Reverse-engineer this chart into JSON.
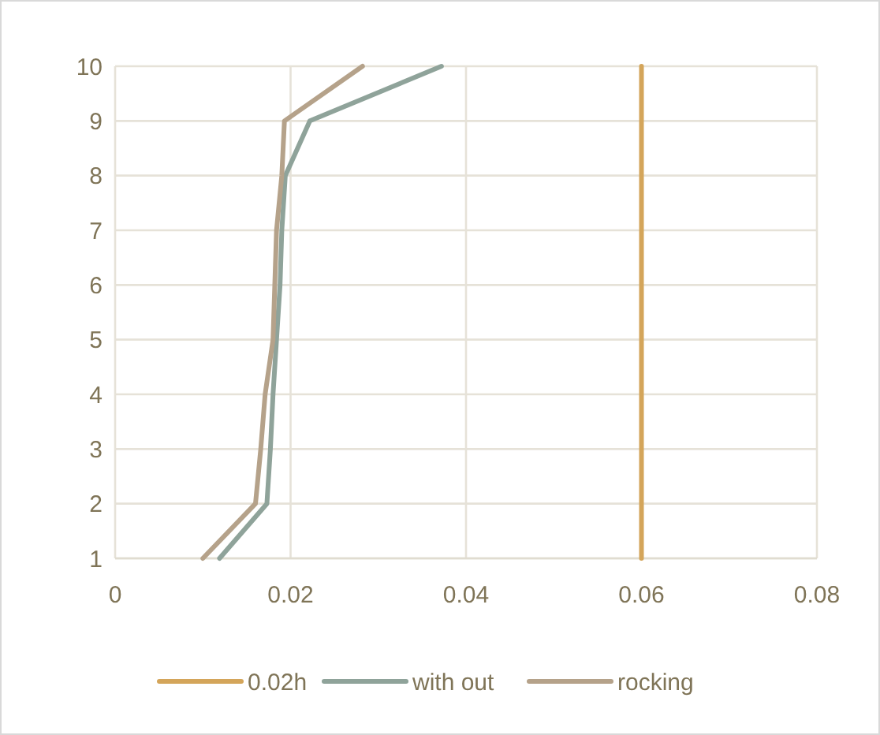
{
  "chart_data": {
    "type": "line",
    "xlim": [
      0,
      0.08
    ],
    "xticks": [
      0,
      0.02,
      0.04,
      0.06,
      0.08
    ],
    "ylim": [
      1,
      10
    ],
    "yticks": [
      1,
      2,
      3,
      4,
      5,
      6,
      7,
      8,
      9,
      10
    ],
    "grid": true,
    "legend": "bottom",
    "marker": "none",
    "series": [
      {
        "name": "0.02h",
        "color": "#d4a55a",
        "x": [
          0.06,
          0.06
        ],
        "values": [
          1,
          10
        ]
      },
      {
        "name": "with out",
        "color": "#8fa39a",
        "x": [
          0.0119,
          0.0173,
          0.0177,
          0.018,
          0.0184,
          0.0188,
          0.019,
          0.0194,
          0.0222,
          0.0372
        ],
        "values": [
          1,
          2,
          3,
          4,
          5,
          6,
          7,
          8,
          9,
          10
        ]
      },
      {
        "name": "rocking",
        "color": "#b5a28a",
        "x": [
          0.01,
          0.016,
          0.0166,
          0.0171,
          0.018,
          0.0182,
          0.0184,
          0.019,
          0.0193,
          0.0282
        ],
        "values": [
          1,
          2,
          3,
          4,
          5,
          6,
          7,
          8,
          9,
          10
        ]
      }
    ]
  }
}
